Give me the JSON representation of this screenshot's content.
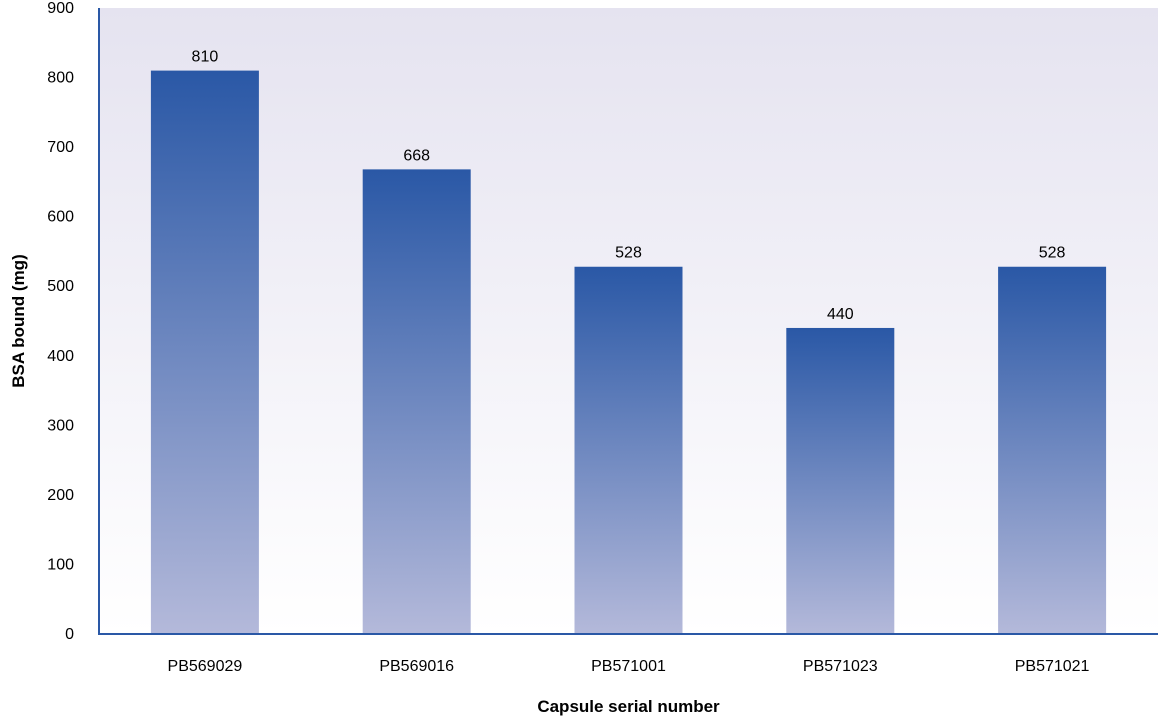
{
  "chart_data": {
    "type": "bar",
    "categories": [
      "PB569029",
      "PB569016",
      "PB571001",
      "PB571023",
      "PB571021"
    ],
    "values": [
      810,
      668,
      528,
      440,
      528
    ],
    "data_labels": [
      "810",
      "668",
      "528",
      "440",
      "528"
    ],
    "xlabel": "Capsule serial number",
    "ylabel": "BSA bound (mg)",
    "ylim": [
      0,
      900
    ],
    "yticks": [
      0,
      100,
      200,
      300,
      400,
      500,
      600,
      700,
      800,
      900
    ],
    "grid": false,
    "colors": {
      "bar_top": "#2a58a6",
      "bar_bottom": "#b4b9da",
      "plot_bg_top": "#e5e3f0",
      "plot_bg_bottom": "#ffffff",
      "axis": "#2a58a6"
    }
  }
}
